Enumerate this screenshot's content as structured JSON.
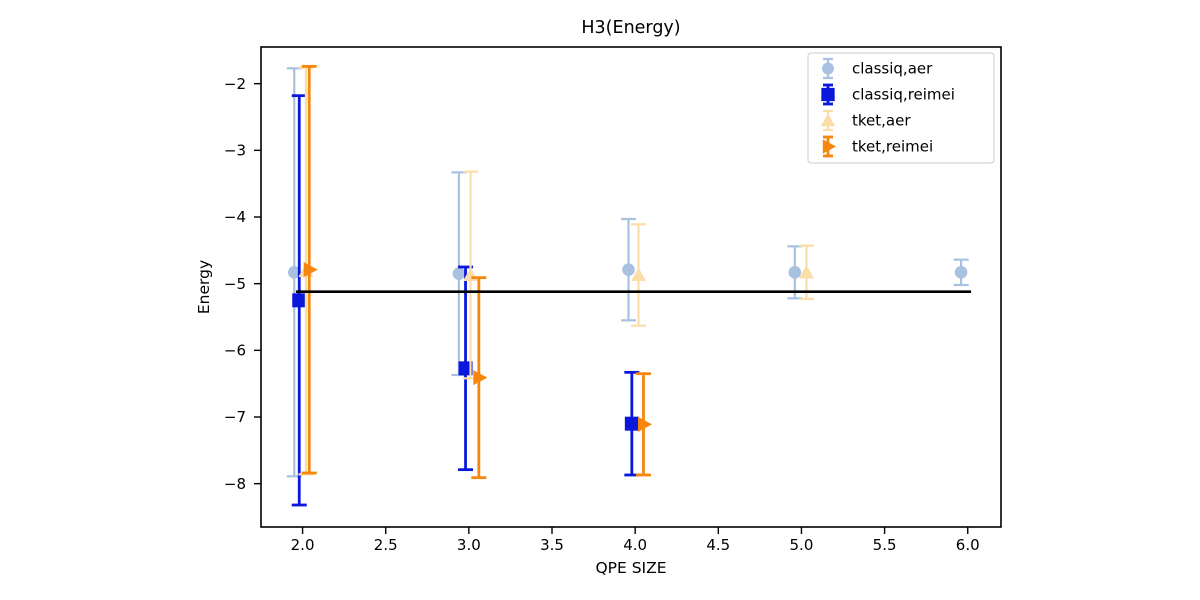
{
  "chart_data": {
    "type": "scatter",
    "title": "H3(Energy)",
    "xlabel": "QPE SIZE",
    "ylabel": "Energy",
    "xlim": [
      1.75,
      6.2
    ],
    "ylim": [
      -8.65,
      -1.45
    ],
    "grid": false,
    "legend_position": "upper right",
    "x_ticks": [
      2.0,
      2.5,
      3.0,
      3.5,
      4.0,
      4.5,
      5.0,
      5.5,
      6.0
    ],
    "x_tick_labels": [
      "2.0",
      "2.5",
      "3.0",
      "3.5",
      "4.0",
      "4.5",
      "5.0",
      "5.5",
      "6.0"
    ],
    "y_ticks": [
      -8,
      -7,
      -6,
      -5,
      -4,
      -3,
      -2
    ],
    "y_tick_labels": [
      "−8",
      "−7",
      "−6",
      "−5",
      "−4",
      "−3",
      "−2"
    ],
    "reference_line": {
      "y": -5.12,
      "x_start": 1.96,
      "x_end": 6.02,
      "color": "#000000"
    },
    "series": [
      {
        "name": "classiq,aer",
        "marker": "circle",
        "color": "#a8c1e0",
        "linewidth": 2.2,
        "points": [
          {
            "x": 1.95,
            "y": -4.83,
            "yerr": 3.06
          },
          {
            "x": 2.94,
            "y": -4.85,
            "yerr": 1.52
          },
          {
            "x": 3.96,
            "y": -4.79,
            "yerr": 0.76
          },
          {
            "x": 4.96,
            "y": -4.83,
            "yerr": 0.39
          },
          {
            "x": 5.96,
            "y": -4.83,
            "yerr": 0.19
          }
        ]
      },
      {
        "name": "classiq,reimei",
        "marker": "square",
        "color": "#0a18dc",
        "linewidth": 2.8,
        "points": [
          {
            "x": 1.98,
            "y": -5.25,
            "yerr": 3.07
          },
          {
            "x": 2.98,
            "y": -6.27,
            "yerr": 1.52
          },
          {
            "x": 3.98,
            "y": -7.1,
            "yerr": 0.77
          }
        ]
      },
      {
        "name": "tket,aer",
        "marker": "triangle_up",
        "color": "#fbdda8",
        "linewidth": 2.2,
        "points": [
          {
            "x": 2.02,
            "y": -4.81,
            "yerr": 3.05
          },
          {
            "x": 3.01,
            "y": -4.87,
            "yerr": 1.55
          },
          {
            "x": 4.02,
            "y": -4.87,
            "yerr": 0.76
          },
          {
            "x": 5.03,
            "y": -4.83,
            "yerr": 0.4
          }
        ]
      },
      {
        "name": "tket,reimei",
        "marker": "triangle_right",
        "color": "#f6860d",
        "linewidth": 2.8,
        "points": [
          {
            "x": 2.04,
            "y": -4.79,
            "yerr": 3.05
          },
          {
            "x": 3.06,
            "y": -6.41,
            "yerr": 1.5
          },
          {
            "x": 4.05,
            "y": -7.11,
            "yerr": 0.76
          }
        ]
      }
    ],
    "legend": {
      "labels": [
        "classiq,aer",
        "classiq,reimei",
        "tket,aer",
        "tket,reimei"
      ],
      "border_color": "#cccccc",
      "background": "#ffffff"
    },
    "axis_color": "#000000"
  }
}
